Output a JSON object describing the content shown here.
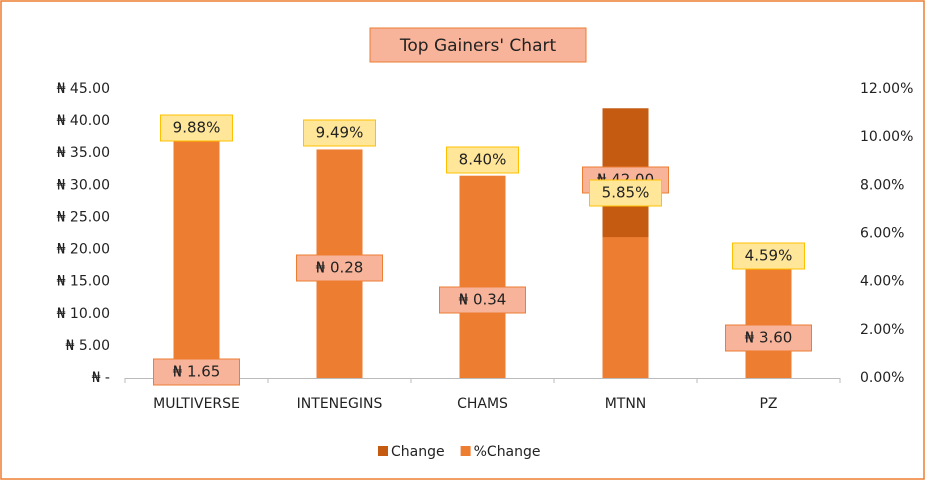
{
  "chart_data": {
    "type": "bar",
    "title": "Top Gainers' Chart",
    "categories": [
      "MULTIVERSE",
      "INTENEGINS",
      "CHAMS",
      "MTNN",
      "PZ"
    ],
    "series": [
      {
        "name": "Change",
        "color": "#c55a11",
        "values": [
          1.65,
          0.28,
          0.34,
          42.0,
          3.6
        ],
        "value_labels": [
          "₦ 1.65",
          "₦ 0.28",
          "₦ 0.34",
          "₦ 42.00",
          "₦ 3.60"
        ]
      },
      {
        "name": "%Change",
        "color": "#ed7d31",
        "axis": "y2",
        "values": [
          9.88,
          9.49,
          8.4,
          5.85,
          4.59
        ],
        "value_labels": [
          "9.88%",
          "9.49%",
          "8.40%",
          "5.85%",
          "4.59%"
        ]
      }
    ],
    "ylim": [
      0,
      45
    ],
    "yticks": [
      {
        "value": 0,
        "label": "₦ -"
      },
      {
        "value": 5,
        "label": "₦ 5.00"
      },
      {
        "value": 10,
        "label": "₦ 10.00"
      },
      {
        "value": 15,
        "label": "₦ 15.00"
      },
      {
        "value": 20,
        "label": "₦ 20.00"
      },
      {
        "value": 25,
        "label": "₦ 25.00"
      },
      {
        "value": 30,
        "label": "₦ 30.00"
      },
      {
        "value": 35,
        "label": "₦ 35.00"
      },
      {
        "value": 40,
        "label": "₦ 40.00"
      },
      {
        "value": 45,
        "label": "₦ 45.00"
      }
    ],
    "y2lim": [
      0,
      12
    ],
    "y2ticks": [
      {
        "value": 0,
        "label": "0.00%"
      },
      {
        "value": 2,
        "label": "2.00%"
      },
      {
        "value": 4,
        "label": "4.00%"
      },
      {
        "value": 6,
        "label": "6.00%"
      },
      {
        "value": 8,
        "label": "8.00%"
      },
      {
        "value": 10,
        "label": "10.00%"
      },
      {
        "value": 12,
        "label": "12.00%"
      }
    ],
    "legend": "bottom"
  }
}
